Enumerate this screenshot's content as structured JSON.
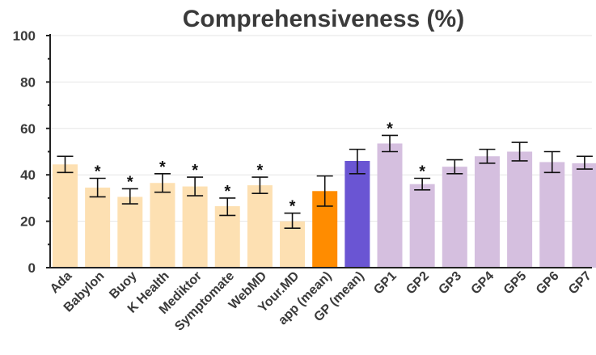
{
  "chart_data": {
    "type": "bar",
    "title": "Comprehensiveness (%)",
    "ylim": [
      0,
      100
    ],
    "yticks": [
      0,
      20,
      40,
      60,
      80,
      100
    ],
    "grid": true,
    "categories": [
      "Ada",
      "Babylon",
      "Buoy",
      "K Health",
      "Mediktor",
      "Symptomate",
      "WebMD",
      "Your.MD",
      "app (mean)",
      "GP (mean)",
      "GP1",
      "GP2",
      "GP3",
      "GP4",
      "GP5",
      "GP6",
      "GP7"
    ],
    "values": [
      44.5,
      34.5,
      30.5,
      36.5,
      35,
      26.5,
      35.5,
      20,
      33,
      46,
      53.5,
      36,
      43.5,
      48,
      50,
      45.5,
      45
    ],
    "error_low": [
      41,
      30.5,
      27.5,
      32.5,
      31,
      22.5,
      32,
      17,
      26.5,
      40.5,
      50,
      33.5,
      40.5,
      45,
      46,
      41,
      42.5
    ],
    "error_high": [
      48,
      38.5,
      34,
      40.5,
      39,
      30,
      39,
      23.5,
      39.5,
      51,
      57,
      38.5,
      46.5,
      51,
      54,
      50,
      48
    ],
    "significant": [
      false,
      true,
      true,
      true,
      true,
      true,
      true,
      true,
      false,
      false,
      true,
      true,
      false,
      false,
      false,
      false,
      false
    ],
    "significance_marker": "*",
    "colors": [
      "#fde0b2",
      "#fde0b2",
      "#fde0b2",
      "#fde0b2",
      "#fde0b2",
      "#fde0b2",
      "#fde0b2",
      "#fde0b2",
      "#ff8c00",
      "#6a55d3",
      "#d5bfdf",
      "#d5bfdf",
      "#d5bfdf",
      "#d5bfdf",
      "#d5bfdf",
      "#d5bfdf",
      "#d5bfdf"
    ]
  }
}
